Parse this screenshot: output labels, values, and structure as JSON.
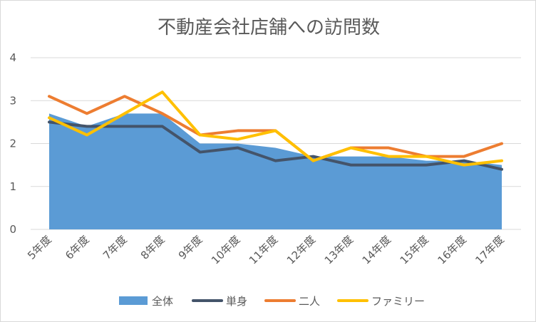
{
  "chart_data": {
    "type": "area",
    "title": "不動産会社店舗への訪問数",
    "categories": [
      "5年度",
      "6年度",
      "7年度",
      "8年度",
      "9年度",
      "10年度",
      "11年度",
      "12年度",
      "13年度",
      "14年度",
      "15年度",
      "16年度",
      "17年度"
    ],
    "ylim": [
      0,
      4
    ],
    "yticks": [
      0,
      1,
      2,
      3,
      4
    ],
    "grid": true,
    "legend_position": "bottom",
    "series": [
      {
        "name": "全体",
        "kind": "area",
        "color": "#5b9bd5",
        "values": [
          2.7,
          2.4,
          2.7,
          2.7,
          2.0,
          2.0,
          1.9,
          1.7,
          1.7,
          1.7,
          1.6,
          1.6,
          1.5
        ]
      },
      {
        "name": "単身",
        "kind": "line",
        "color": "#44546a",
        "values": [
          2.5,
          2.4,
          2.4,
          2.4,
          1.8,
          1.9,
          1.6,
          1.7,
          1.5,
          1.5,
          1.5,
          1.6,
          1.4
        ]
      },
      {
        "name": "二人",
        "kind": "line",
        "color": "#ed7d31",
        "values": [
          3.1,
          2.7,
          3.1,
          2.7,
          2.2,
          2.3,
          2.3,
          1.6,
          1.9,
          1.9,
          1.7,
          1.7,
          2.0
        ]
      },
      {
        "name": "ファミリー",
        "kind": "line",
        "color": "#ffc000",
        "values": [
          2.6,
          2.2,
          2.7,
          3.2,
          2.2,
          2.1,
          2.3,
          1.6,
          1.9,
          1.7,
          1.7,
          1.5,
          1.6
        ]
      }
    ]
  }
}
